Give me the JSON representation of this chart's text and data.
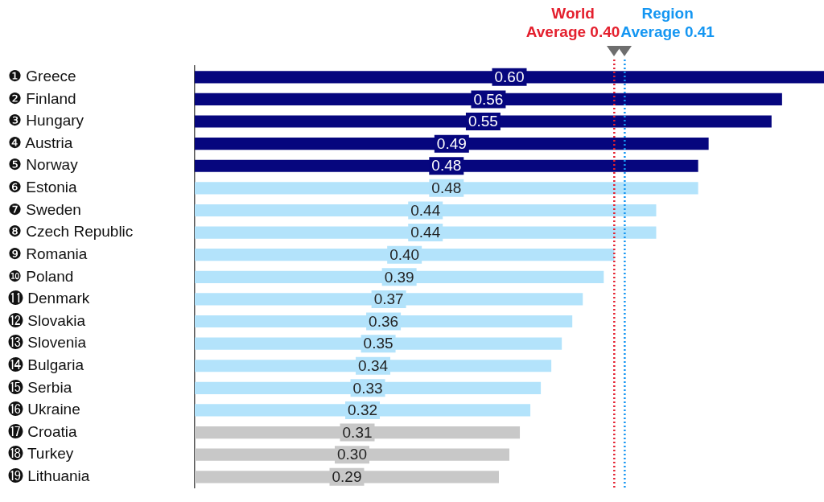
{
  "chart_data": {
    "type": "bar",
    "orientation": "horizontal",
    "categories": [
      "❶ Greece",
      "❷ Finland",
      "❸ Hungary",
      "❹ Austria",
      "❺ Norway",
      "❻ Estonia",
      "❼ Sweden",
      "❽ Czech Republic",
      "❾ Romania",
      "❿ Poland",
      "⓫ Denmark",
      "⓬ Slovakia",
      "⓭ Slovenia",
      "⓮ Bulgaria",
      "⓯ Serbia",
      "⓰ Ukraine",
      "⓱ Croatia",
      "⓲ Turkey",
      "⓳ Lithuania"
    ],
    "values": [
      0.6,
      0.56,
      0.55,
      0.49,
      0.48,
      0.48,
      0.44,
      0.44,
      0.4,
      0.39,
      0.37,
      0.36,
      0.35,
      0.34,
      0.33,
      0.32,
      0.31,
      0.3,
      0.29
    ],
    "colors": [
      "#06067e",
      "#06067e",
      "#06067e",
      "#06067e",
      "#06067e",
      "#b3e3fb",
      "#b3e3fb",
      "#b3e3fb",
      "#b3e3fb",
      "#b3e3fb",
      "#b3e3fb",
      "#b3e3fb",
      "#b3e3fb",
      "#b3e3fb",
      "#b3e3fb",
      "#b3e3fb",
      "#c8c8c8",
      "#c8c8c8",
      "#c8c8c8"
    ],
    "value_labels": [
      "0.60",
      "0.56",
      "0.55",
      "0.49",
      "0.48",
      "0.48",
      "0.44",
      "0.44",
      "0.40",
      "0.39",
      "0.37",
      "0.36",
      "0.35",
      "0.34",
      "0.33",
      "0.32",
      "0.31",
      "0.30",
      "0.29"
    ],
    "xlim": [
      0,
      0.6
    ],
    "ref_lines": [
      {
        "axis": "x",
        "value": 0.4,
        "label": "World Average 0.40",
        "color": "#e4202e",
        "line_style": "dotted"
      },
      {
        "axis": "x",
        "value": 0.41,
        "label": "Region Average 0.41",
        "color": "#1496f2",
        "line_style": "dotted"
      }
    ],
    "grid": false,
    "legend": false,
    "tick_labels": "y"
  }
}
